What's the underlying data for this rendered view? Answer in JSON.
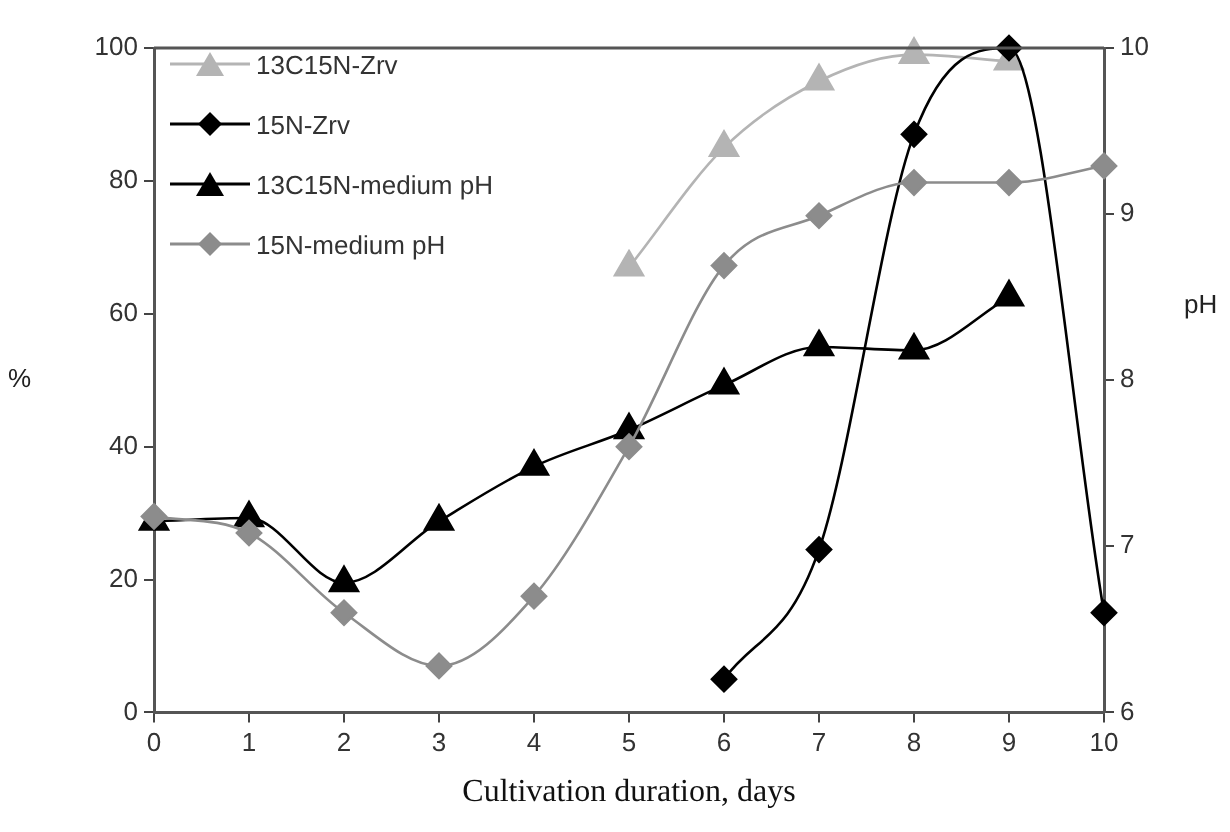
{
  "chart_data": {
    "type": "line",
    "xlabel": "Cultivation duration, days",
    "ylabel": "%",
    "y2label": "pH",
    "x": [
      0,
      1,
      2,
      3,
      4,
      5,
      6,
      7,
      8,
      9,
      10
    ],
    "xlim": [
      0,
      10
    ],
    "xticks": [
      0,
      1,
      2,
      3,
      4,
      5,
      6,
      7,
      8,
      9,
      10
    ],
    "ylim": [
      0,
      100
    ],
    "yticks": [
      0,
      20,
      40,
      60,
      80,
      100
    ],
    "y2lim": [
      6,
      10
    ],
    "y2ticks": [
      6,
      7,
      8,
      9,
      10
    ],
    "grid": false,
    "legend": "top left",
    "series": [
      {
        "name": "13C15N-Zrv",
        "color": "#b4b4b4",
        "marker": "triangle",
        "values": [
          null,
          null,
          null,
          null,
          null,
          67,
          85,
          95,
          99,
          98,
          null
        ]
      },
      {
        "name": "15N-Zrv",
        "color": "#000000",
        "marker": "diamond",
        "values": [
          null,
          null,
          null,
          null,
          null,
          null,
          5,
          24.5,
          87,
          100,
          15
        ]
      },
      {
        "name": "13C15N-medium pH",
        "color": "#000000",
        "marker": "triangle",
        "axis": "y2",
        "values": [
          7.15,
          7.17,
          6.78,
          7.15,
          7.48,
          7.7,
          7.97,
          8.2,
          8.18,
          8.5,
          null
        ]
      },
      {
        "name": "15N-medium pH",
        "color": "#8c8c8c",
        "marker": "diamond",
        "axis": "y2",
        "values": [
          7.18,
          7.08,
          6.6,
          6.28,
          6.7,
          7.6,
          8.69,
          8.99,
          9.19,
          9.19,
          9.29
        ]
      }
    ]
  }
}
